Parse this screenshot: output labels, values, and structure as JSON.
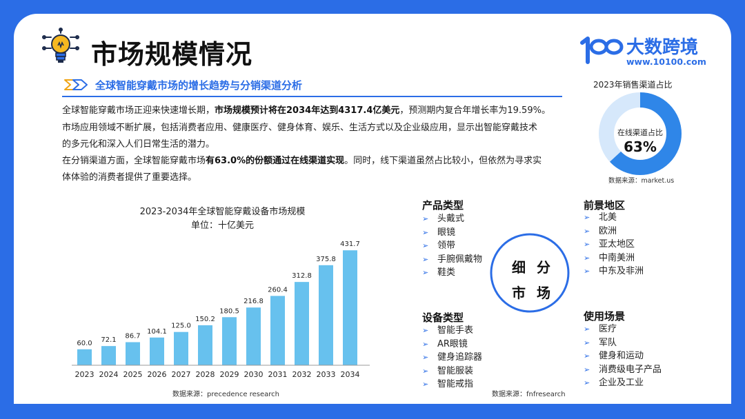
{
  "header": {
    "title": "市场规模情况",
    "brand_name": "大数跨境",
    "brand_url": "www.10100.com",
    "brand_logo_text": "10100"
  },
  "section_subtitle": "全球智能穿戴市场的增长趋势与分销渠道分析",
  "paragraphs": {
    "p1_pre": "全球智能穿戴市场正迎来快速增长期，",
    "p1_bold": "市场规模预计将在2034年达到4317.4亿美元",
    "p1_post": "，预测期内复合年增长率为19.59%。",
    "p2": "市场应用领域不断扩展，包括消费者应用、健康医疗、健身体育、娱乐、生活方式以及企业级应用，显示出智能穿戴技术",
    "p3": "的多元化和深入人们日常生活的潜力。",
    "p4_pre": "在分销渠道方面，全球智能穿戴市场",
    "p4_bold": "有63.0%的份额通过在线渠道实现",
    "p4_post": "。同时，线下渠道虽然占比较小，但依然为寻求实",
    "p5": "体体验的消费者提供了重要选择。"
  },
  "donut": {
    "title": "2023年销售渠道占比",
    "center_label": "在线渠道占比",
    "center_value": "63%",
    "online_share": 0.63,
    "online_color": "#2f86e8",
    "rest_color": "#d6e8fb",
    "source": "数据来源：market.us"
  },
  "chart_data": {
    "type": "bar",
    "title": "2023-2034年全球智能穿戴设备市场规模",
    "unit": "单位：十亿美元",
    "categories": [
      "2023",
      "2024",
      "2025",
      "2026",
      "2027",
      "2028",
      "2029",
      "2030",
      "2031",
      "2032",
      "2033",
      "2034"
    ],
    "values": [
      60.0,
      72.1,
      86.7,
      104.1,
      125.0,
      150.2,
      180.5,
      216.8,
      260.4,
      312.8,
      375.8,
      431.7
    ],
    "value_labels": [
      "60.0",
      "72.1",
      "86.7",
      "104.1",
      "125.0",
      "150.2",
      "180.5",
      "216.8",
      "260.4",
      "312.8",
      "375.8",
      "431.7"
    ],
    "ylim": [
      0,
      440
    ],
    "bar_color": "#67c1ee",
    "grid": false,
    "source": "数据来源：precedence research"
  },
  "segments": {
    "circle_line1": "细分",
    "circle_line2": "市场",
    "product_title": "产品类型",
    "product_items": [
      "头戴式",
      "眼镜",
      "领带",
      "手腕佩戴物",
      "鞋类"
    ],
    "region_title": "前景地区",
    "region_items": [
      "北美",
      "欧洲",
      "亚太地区",
      "中南美洲",
      "中东及非洲"
    ],
    "device_title": "设备类型",
    "device_items": [
      "智能手表",
      "AR眼镜",
      "健身追踪器",
      "智能服装",
      "智能戒指"
    ],
    "usage_title": "使用场景",
    "usage_items": [
      "医疗",
      "军队",
      "健身和运动",
      "消费级电子产品",
      "企业及工业"
    ],
    "source": "数据来源：fnfresearch",
    "arrow_glyph": "➢"
  },
  "colors": {
    "accent": "#2b6de6",
    "bar": "#67c1ee"
  }
}
